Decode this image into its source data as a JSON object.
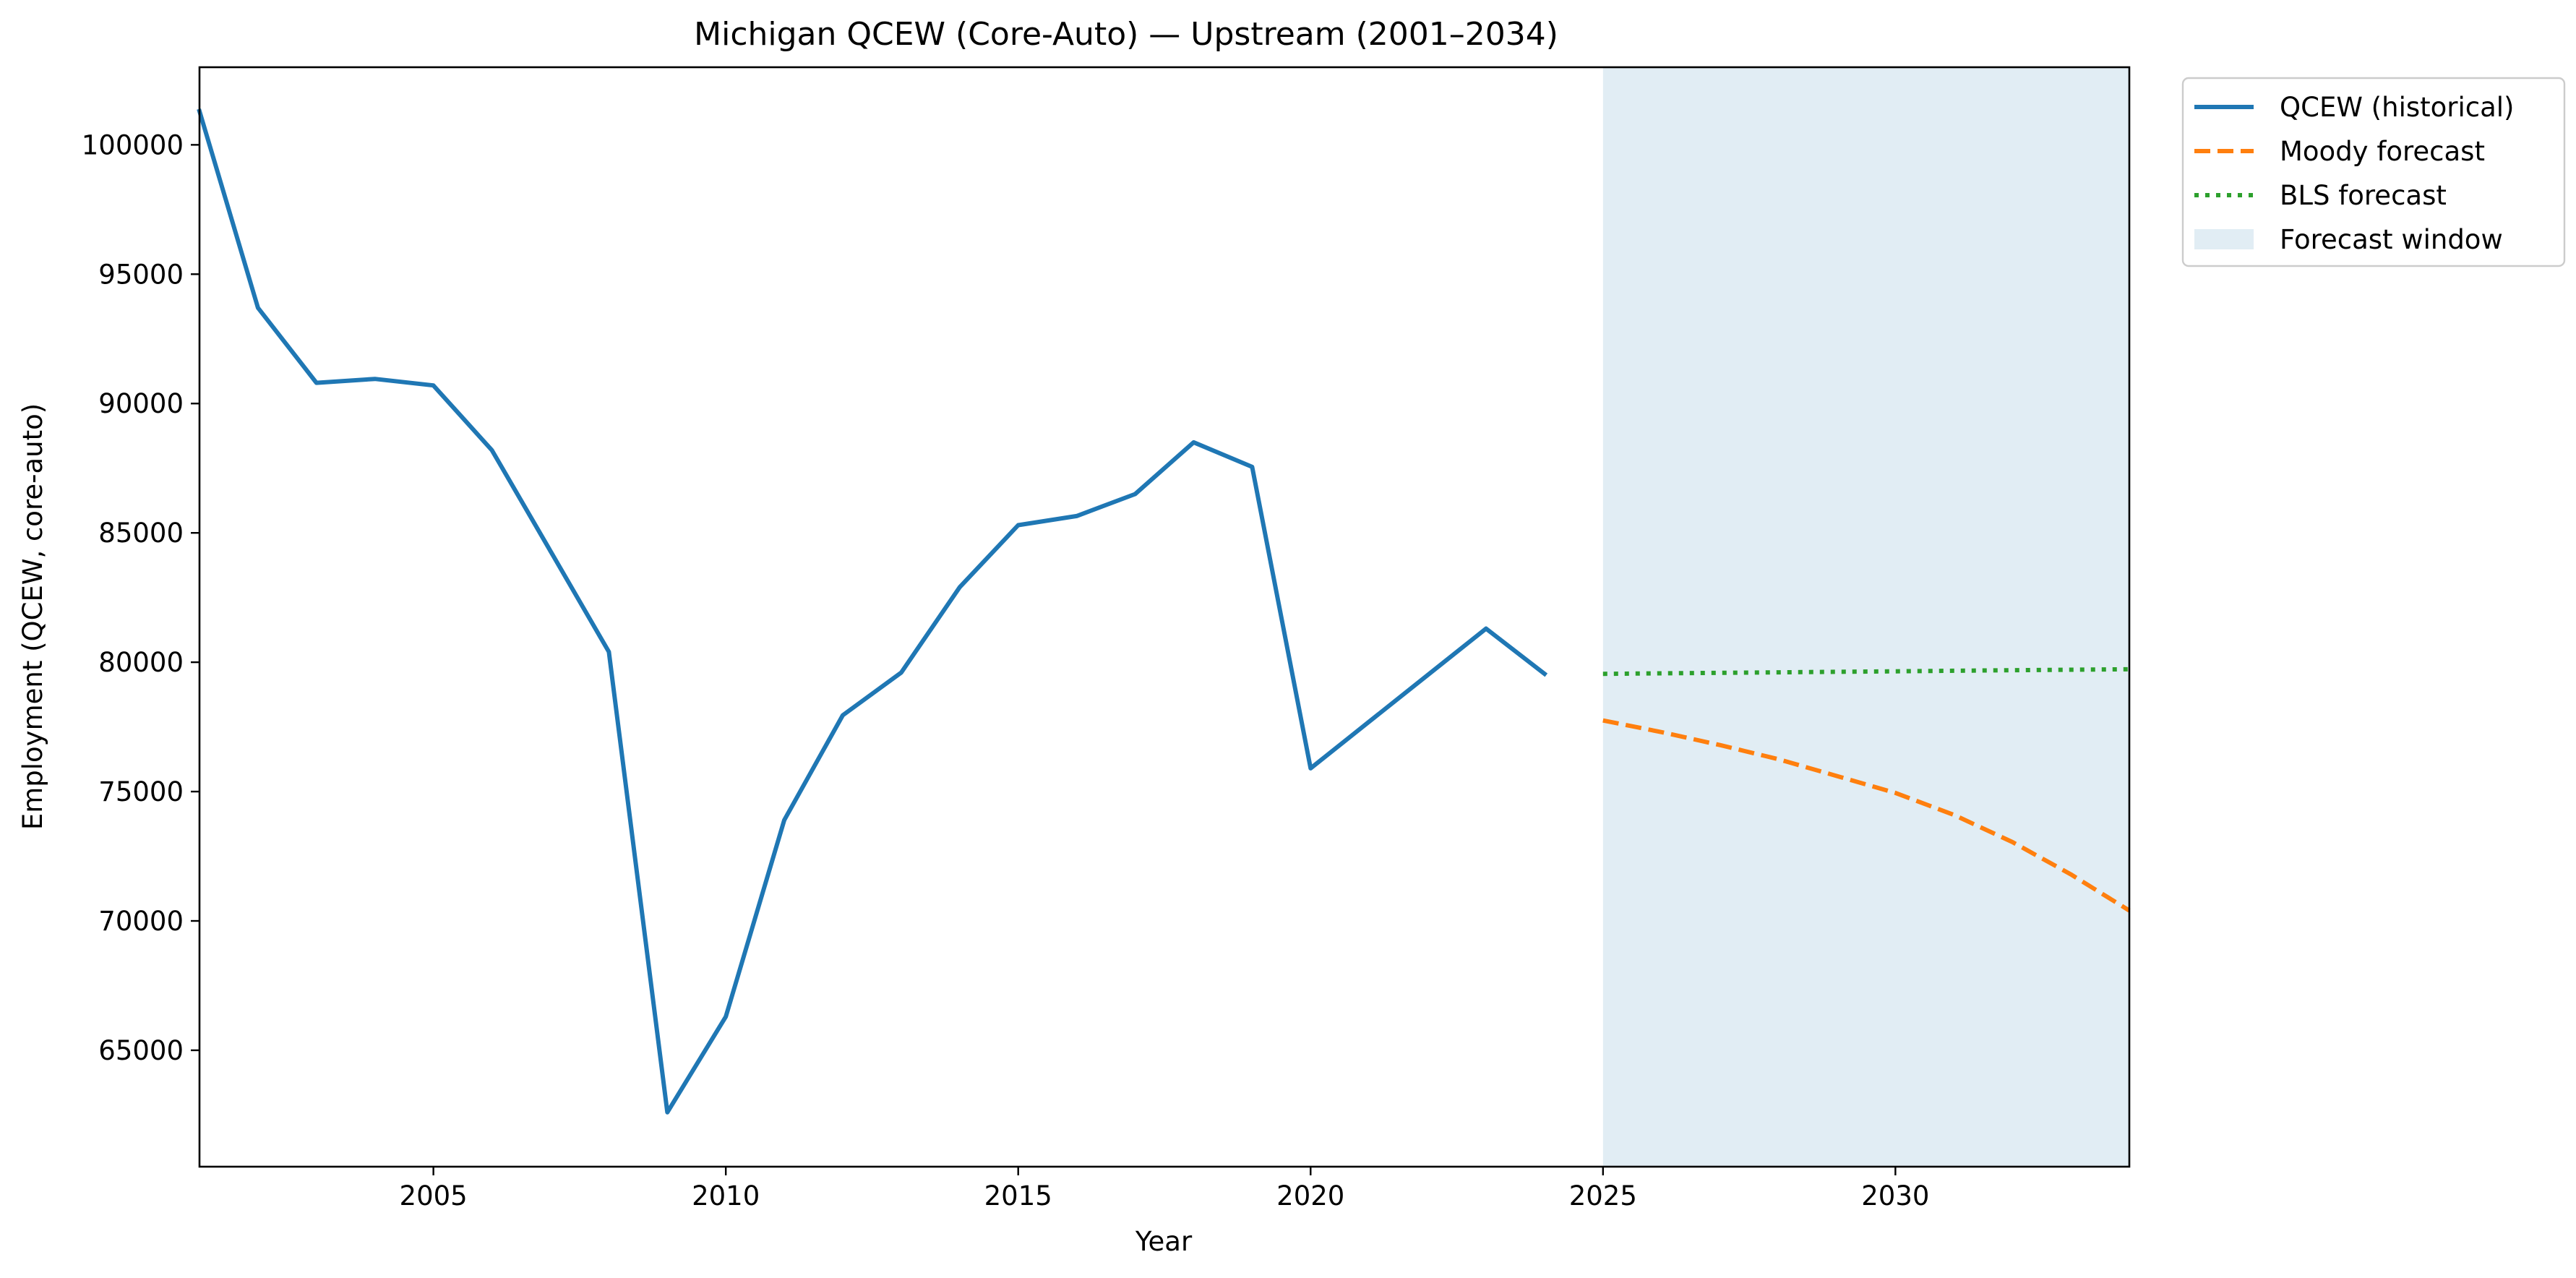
{
  "chart_data": {
    "type": "line",
    "title": "Michigan QCEW (Core-Auto) — Upstream (2001–2034)",
    "xlabel": "Year",
    "ylabel": "Employment (QCEW, core-auto)",
    "xlim": [
      2001,
      2034
    ],
    "ylim": [
      60500,
      103000
    ],
    "x_ticks": [
      2005,
      2010,
      2015,
      2020,
      2025,
      2030
    ],
    "y_ticks": [
      65000,
      70000,
      75000,
      80000,
      85000,
      90000,
      95000,
      100000
    ],
    "grid": false,
    "legend_position": "outside-top-right",
    "forecast_window": {
      "label": "Forecast window",
      "x_start": 2025,
      "x_end": 2034,
      "color": "#e1edf4"
    },
    "series": [
      {
        "name": "QCEW (historical)",
        "style": "solid",
        "color": "#1f77b4",
        "x": [
          2001,
          2002,
          2003,
          2004,
          2005,
          2006,
          2007,
          2008,
          2009,
          2010,
          2011,
          2012,
          2013,
          2014,
          2015,
          2016,
          2017,
          2018,
          2019,
          2020,
          2021,
          2022,
          2023,
          2024
        ],
        "y": [
          101300,
          93700,
          90800,
          90950,
          90700,
          88200,
          84300,
          80400,
          62600,
          66300,
          73900,
          77950,
          79600,
          82900,
          85300,
          85650,
          86500,
          88500,
          87550,
          75900,
          77700,
          79500,
          81300,
          79550
        ]
      },
      {
        "name": "Moody forecast",
        "style": "dashed",
        "color": "#ff7f0e",
        "x": [
          2025,
          2026,
          2027,
          2028,
          2029,
          2030,
          2031,
          2032,
          2033,
          2034
        ],
        "y": [
          77750,
          77300,
          76800,
          76250,
          75600,
          74950,
          74100,
          73050,
          71800,
          70400
        ]
      },
      {
        "name": "BLS forecast",
        "style": "dotted",
        "color": "#2ca02c",
        "x": [
          2025,
          2026,
          2027,
          2028,
          2029,
          2030,
          2031,
          2032,
          2033,
          2034
        ],
        "y": [
          79550,
          79570,
          79590,
          79610,
          79630,
          79650,
          79670,
          79690,
          79710,
          79730
        ]
      }
    ]
  }
}
